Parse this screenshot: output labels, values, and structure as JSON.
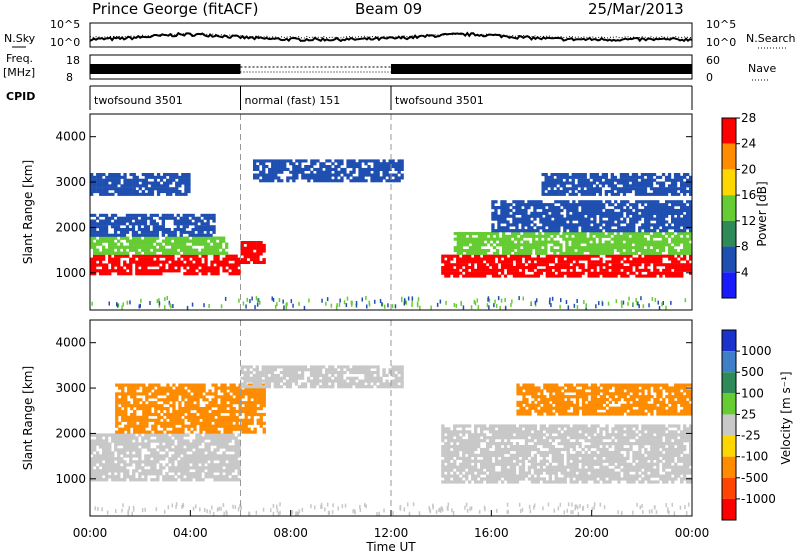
{
  "header": {
    "station": "Prince George (fitACF)",
    "beam": "Beam 09",
    "date": "25/Mar/2013"
  },
  "noise_panel": {
    "left_label": "N.Sky",
    "right_label": "N.Search",
    "left_ticks": [
      "10^5",
      "10^0"
    ],
    "right_ticks": [
      "10^5",
      "10^0"
    ]
  },
  "freq_panel": {
    "left_label_top": "Freq.",
    "left_label_unit": "[MHz]",
    "left_ticks": [
      "18",
      "8"
    ],
    "right_label": "Nave",
    "right_ticks": [
      "60",
      "0"
    ]
  },
  "cpid": {
    "label": "CPID",
    "segments": [
      {
        "name": "twofsound 3501",
        "start": 0,
        "end": 6
      },
      {
        "name": "normal (fast) 151",
        "start": 6,
        "end": 12
      },
      {
        "name": "twofsound 3501",
        "start": 12,
        "end": 24
      }
    ]
  },
  "power_panel": {
    "ylabel": "Slant Range [km]",
    "yticks": [
      "1000",
      "2000",
      "3000",
      "4000"
    ],
    "colorbar_label": "Power [dB]",
    "colorbar_ticks": [
      "4",
      "8",
      "12",
      "16",
      "20",
      "24",
      "28"
    ],
    "colors": [
      "#1a1aff",
      "#1f4fb0",
      "#2e8b57",
      "#66cc33",
      "#ffd700",
      "#ff8c00",
      "#ff0000"
    ]
  },
  "velocity_panel": {
    "ylabel": "Slant Range [km]",
    "yticks": [
      "1000",
      "2000",
      "3000",
      "4000"
    ],
    "colorbar_label": "Velocity [m s⁻¹]",
    "colorbar_ticks": [
      "1000",
      "500",
      "100",
      "25",
      "-25",
      "-100",
      "-500",
      "-1000"
    ],
    "colors": [
      "#1a33cc",
      "#3f7fc8",
      "#2e8b57",
      "#66cc33",
      "#c8c8c8",
      "#ffd700",
      "#ff8c00",
      "#ff4500",
      "#ff0000"
    ]
  },
  "xaxis": {
    "label": "Time UT",
    "ticks": [
      "00:00",
      "04:00",
      "08:00",
      "12:00",
      "16:00",
      "20:00",
      "00:00"
    ]
  },
  "chart_data": {
    "type": "heatmap",
    "title": "Prince George (fitACF)  Beam 09  25/Mar/2013",
    "xlabel": "Time UT",
    "ylabel": "Slant Range [km]",
    "x_range_hours": [
      0,
      24
    ],
    "y_range_km": [
      180,
      4500
    ],
    "power_colorbar_db": [
      4,
      8,
      12,
      16,
      20,
      24,
      28
    ],
    "velocity_colorbar_ms": [
      1000,
      500,
      100,
      25,
      -25,
      -100,
      -500,
      -1000
    ],
    "cpid_segments": [
      {
        "name": "twofsound 3501",
        "start_hr": 0,
        "end_hr": 6
      },
      {
        "name": "normal (fast) 151",
        "start_hr": 6,
        "end_hr": 12
      },
      {
        "name": "twofsound 3501",
        "start_hr": 12,
        "end_hr": 24
      }
    ],
    "power_regions": [
      {
        "t0": 0.0,
        "t1": 6.0,
        "r0": 950,
        "r1": 1400,
        "level": 28
      },
      {
        "t0": 0.0,
        "t1": 5.5,
        "r0": 1400,
        "r1": 1800,
        "level": 16
      },
      {
        "t0": 0.0,
        "t1": 5.0,
        "r0": 1800,
        "r1": 2300,
        "level": 8
      },
      {
        "t0": 0.0,
        "t1": 4.0,
        "r0": 2700,
        "r1": 3200,
        "level": 8
      },
      {
        "t0": 6.0,
        "t1": 7.0,
        "r0": 1200,
        "r1": 1700,
        "level": 28
      },
      {
        "t0": 6.5,
        "t1": 12.5,
        "r0": 3000,
        "r1": 3500,
        "level": 8
      },
      {
        "t0": 14.0,
        "t1": 24.0,
        "r0": 900,
        "r1": 1400,
        "level": 28
      },
      {
        "t0": 14.5,
        "t1": 24.0,
        "r0": 1400,
        "r1": 1900,
        "level": 16
      },
      {
        "t0": 16.0,
        "t1": 24.0,
        "r0": 1900,
        "r1": 2600,
        "level": 8
      },
      {
        "t0": 18.0,
        "t1": 24.0,
        "r0": 2700,
        "r1": 3200,
        "level": 8
      }
    ],
    "velocity_regions": [
      {
        "t0": 0.0,
        "t1": 6.0,
        "r0": 950,
        "r1": 2000,
        "level": 0
      },
      {
        "t0": 14.0,
        "t1": 24.0,
        "r0": 900,
        "r1": 2200,
        "level": 0
      },
      {
        "t0": 1.0,
        "t1": 7.0,
        "r0": 2000,
        "r1": 3100,
        "level": -100
      },
      {
        "t0": 6.0,
        "t1": 12.5,
        "r0": 3000,
        "r1": 3500,
        "level": 0
      },
      {
        "t0": 17.0,
        "t1": 24.0,
        "r0": 2400,
        "r1": 3100,
        "level": -100
      }
    ]
  }
}
